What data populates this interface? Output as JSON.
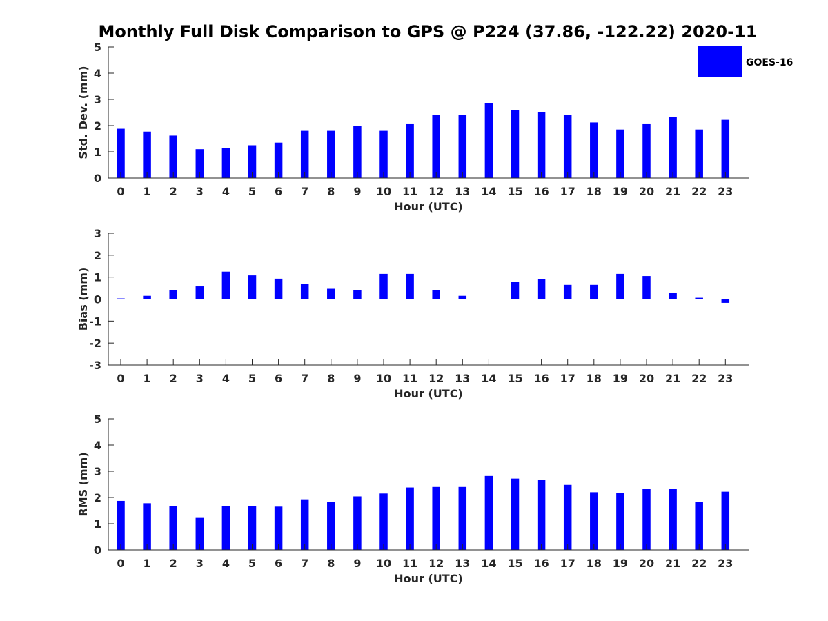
{
  "figure": {
    "title": "Monthly Full Disk Comparison to GPS @ P224 (37.86, -122.22) 2020-11",
    "bar_color": "#0000ff"
  },
  "chart_data": [
    {
      "type": "bar",
      "title": "",
      "xlabel": "Hour (UTC)",
      "ylabel": "Std. Dev. (mm)",
      "ylim": [
        0,
        5
      ],
      "yticks": [
        0,
        1,
        2,
        3,
        4,
        5
      ],
      "categories": [
        "0",
        "1",
        "2",
        "3",
        "4",
        "5",
        "6",
        "7",
        "8",
        "9",
        "10",
        "11",
        "12",
        "13",
        "14",
        "15",
        "16",
        "17",
        "18",
        "19",
        "20",
        "21",
        "22",
        "23"
      ],
      "series": [
        {
          "name": "GOES-16",
          "color": "#0000ff",
          "values": [
            1.88,
            1.77,
            1.62,
            1.1,
            1.15,
            1.25,
            1.35,
            1.8,
            1.8,
            2.0,
            1.8,
            2.08,
            2.4,
            2.4,
            2.85,
            2.6,
            2.5,
            2.42,
            2.12,
            1.85,
            2.08,
            2.32,
            1.85,
            2.22
          ]
        }
      ],
      "legend": {
        "show": true,
        "placement": "top-right"
      },
      "grid": false
    },
    {
      "type": "bar",
      "title": "",
      "xlabel": "Hour (UTC)",
      "ylabel": "Bias (mm)",
      "ylim": [
        -3,
        3
      ],
      "yticks": [
        -3,
        -2,
        -1,
        0,
        1,
        2,
        3
      ],
      "categories": [
        "0",
        "1",
        "2",
        "3",
        "4",
        "5",
        "6",
        "7",
        "8",
        "9",
        "10",
        "11",
        "12",
        "13",
        "14",
        "15",
        "16",
        "17",
        "18",
        "19",
        "20",
        "21",
        "22",
        "23"
      ],
      "series": [
        {
          "name": "GOES-16",
          "color": "#0000ff",
          "values": [
            0.03,
            0.15,
            0.42,
            0.58,
            1.25,
            1.08,
            0.93,
            0.7,
            0.47,
            0.42,
            1.15,
            1.15,
            0.4,
            0.15,
            0.0,
            0.8,
            0.9,
            0.65,
            0.65,
            1.15,
            1.05,
            0.27,
            0.06,
            -0.17
          ]
        }
      ],
      "legend": {
        "show": false
      },
      "grid": false
    },
    {
      "type": "bar",
      "title": "",
      "xlabel": "Hour (UTC)",
      "ylabel": "RMS (mm)",
      "ylim": [
        0,
        5
      ],
      "yticks": [
        0,
        1,
        2,
        3,
        4,
        5
      ],
      "categories": [
        "0",
        "1",
        "2",
        "3",
        "4",
        "5",
        "6",
        "7",
        "8",
        "9",
        "10",
        "11",
        "12",
        "13",
        "14",
        "15",
        "16",
        "17",
        "18",
        "19",
        "20",
        "21",
        "22",
        "23"
      ],
      "series": [
        {
          "name": "GOES-16",
          "color": "#0000ff",
          "values": [
            1.87,
            1.78,
            1.68,
            1.22,
            1.68,
            1.68,
            1.65,
            1.93,
            1.83,
            2.04,
            2.15,
            2.38,
            2.4,
            2.4,
            2.82,
            2.72,
            2.67,
            2.48,
            2.2,
            2.17,
            2.33,
            2.33,
            1.83,
            2.22
          ]
        }
      ],
      "legend": {
        "show": false
      },
      "grid": false
    }
  ]
}
